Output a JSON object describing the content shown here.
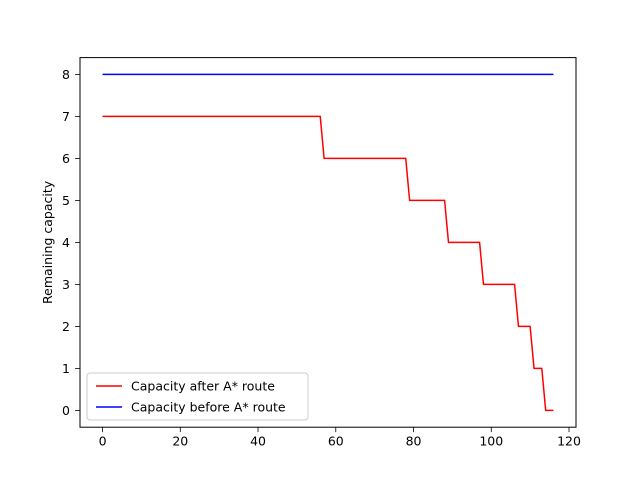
{
  "chart_data": {
    "type": "line",
    "title": "",
    "xlabel": "",
    "ylabel": "Remaining capacity",
    "xlim": [
      -5.8,
      121.8
    ],
    "ylim": [
      -0.4,
      8.4
    ],
    "xticks": [
      0,
      20,
      40,
      60,
      80,
      100,
      120
    ],
    "yticks": [
      0,
      1,
      2,
      3,
      4,
      5,
      6,
      7,
      8
    ],
    "grid": false,
    "legend_position": "lower-left",
    "series": [
      {
        "name": "Capacity after A* route",
        "color": "#ff0000",
        "x": [
          0,
          56,
          57,
          78,
          79,
          88,
          89,
          97,
          98,
          106,
          107,
          110,
          111,
          113,
          114,
          116
        ],
        "y": [
          7,
          7,
          6,
          6,
          5,
          5,
          4,
          4,
          3,
          3,
          2,
          2,
          1,
          1,
          0,
          0
        ]
      },
      {
        "name": "Capacity before A* route",
        "color": "#0000ff",
        "x": [
          0,
          116
        ],
        "y": [
          8,
          8
        ]
      }
    ]
  }
}
